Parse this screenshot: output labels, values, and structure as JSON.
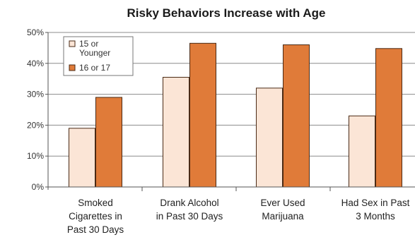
{
  "chart_data": {
    "type": "bar",
    "title": "Risky Behaviors Increase with Age",
    "categories": [
      [
        "Smoked",
        "Cigarettes in",
        "Past 30 Days"
      ],
      [
        "Drank Alcohol",
        "in Past 30 Days"
      ],
      [
        "Ever Used",
        "Marijuana"
      ],
      [
        "Had Sex in Past",
        "3 Months"
      ]
    ],
    "series": [
      {
        "name": [
          "15 or",
          "Younger"
        ],
        "values": [
          19,
          35.5,
          32,
          23
        ],
        "color": "#fbe5d6"
      },
      {
        "name": [
          "16 or 17"
        ],
        "values": [
          29,
          46.5,
          46,
          44.8
        ],
        "color": "#e07b39"
      }
    ],
    "ylim": [
      0,
      50
    ],
    "yticks": [
      "0%",
      "10%",
      "20%",
      "30%",
      "40%",
      "50%"
    ],
    "ytick_values": [
      0,
      10,
      20,
      30,
      40,
      50
    ],
    "grid": true,
    "legend": "top-left",
    "edge_color": "#4a2a15"
  }
}
